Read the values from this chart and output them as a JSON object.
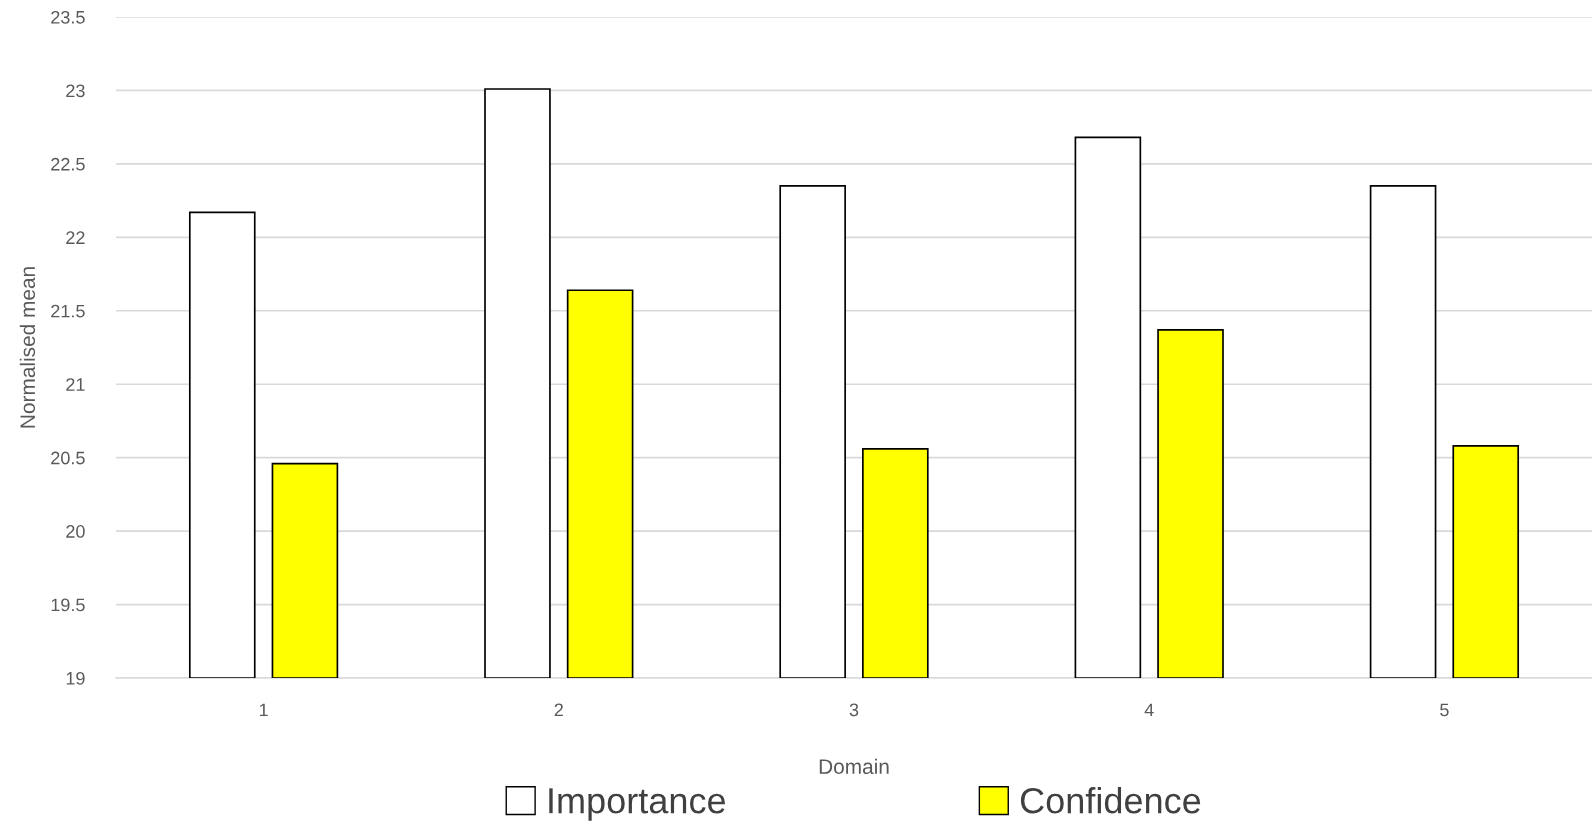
{
  "chart_data": {
    "type": "bar",
    "xlabel": "Domain",
    "ylabel": "Normalised mean",
    "categories": [
      "1",
      "2",
      "3",
      "4",
      "5"
    ],
    "series": [
      {
        "name": "Importance",
        "color": "#ffffff",
        "values": [
          22.17,
          23.01,
          22.35,
          22.68,
          22.35
        ]
      },
      {
        "name": "Confidence",
        "color": "#ffff00",
        "values": [
          20.46,
          21.64,
          20.56,
          21.37,
          20.58
        ]
      }
    ],
    "ylim": [
      19,
      23.5
    ],
    "yticks": [
      19,
      19.5,
      20,
      20.5,
      21,
      21.5,
      22,
      22.5,
      23,
      23.5
    ],
    "grid": "y",
    "legend": "bottom"
  }
}
